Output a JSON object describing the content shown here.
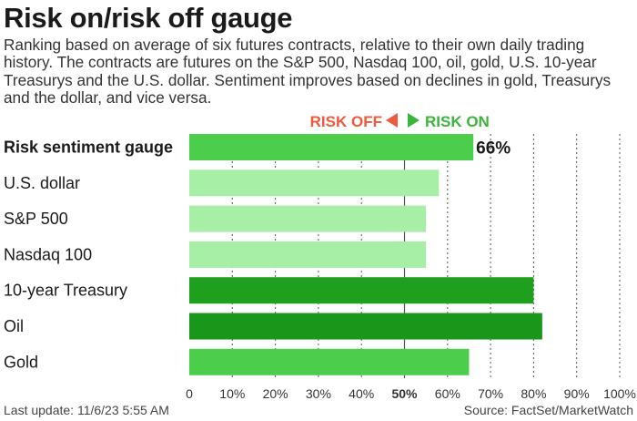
{
  "title": "Risk on/risk off gauge",
  "subtitle": "Ranking based on average of six futures contracts, relative to their own daily trading history. The contracts are futures on the S&P 500, Nasdaq 100, oil, gold, U.S. 10-year Treasurys and the U.S. dollar. Sentiment improves based on declines in gold, Treasurys and the dollar, and vice versa.",
  "legend": {
    "risk_off": "RISK OFF",
    "risk_on": "RISK ON",
    "risk_off_color": "#f05a3c",
    "risk_on_color": "#3cb43c"
  },
  "footer": {
    "last_update": "Last update: 11/6/23 5:55 AM",
    "source": "Source: FactSet/MarketWatch"
  },
  "chart_data": {
    "type": "bar",
    "orientation": "horizontal",
    "categories": [
      "Risk sentiment gauge",
      "U.S. dollar",
      "S&P 500",
      "Nasdaq 100",
      "10-year Treasury",
      "Oil",
      "Gold"
    ],
    "values": [
      66,
      58,
      55,
      55,
      80,
      82,
      65
    ],
    "value_labels": [
      "66%",
      "",
      "",
      "",
      "",
      "",
      ""
    ],
    "bar_colors": [
      "#4ccd4c",
      "#a7efa7",
      "#a7efa7",
      "#a7efa7",
      "#1ea01e",
      "#1a961a",
      "#4ccd4c"
    ],
    "xlim": [
      0,
      100
    ],
    "x_ticks": [
      0,
      10,
      20,
      30,
      40,
      50,
      60,
      70,
      80,
      90,
      100
    ],
    "x_tick_labels": [
      "0",
      "10%",
      "20%",
      "30%",
      "40%",
      "50%",
      "60%",
      "70%",
      "80%",
      "90%",
      "100%"
    ],
    "highlight_tick": 50,
    "grid": "vertical dashed",
    "xlabel": "",
    "ylabel": ""
  }
}
